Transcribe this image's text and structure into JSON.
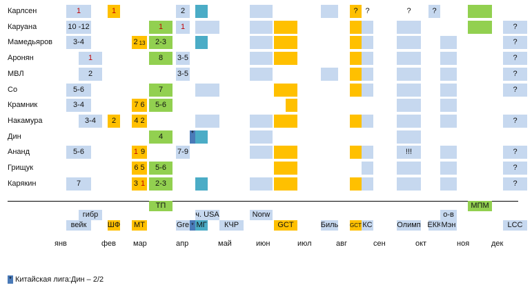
{
  "colors": {
    "blue": "#c6d8ef",
    "orange": "#ffc000",
    "green": "#92d050",
    "teal": "#4bacc6",
    "darkblue": "#4a7ab8",
    "red_text": "#c00000"
  },
  "chart_data": {
    "type": "table",
    "players": [
      "Карлсен",
      "Каруана",
      "Мамедьяров",
      "Аронян",
      "МВЛ",
      "Со",
      "Крамник",
      "Накамура",
      "Дин",
      "Ананд",
      "Грищук",
      "Карякин"
    ],
    "months": [
      "янв",
      "фев",
      "мар",
      "апр",
      "май",
      "июн",
      "июл",
      "авг",
      "сен",
      "окт",
      "ноя",
      "дек"
    ],
    "events_row1": [
      "ТП",
      "МПМ"
    ],
    "events_row2": [
      "гибр",
      "ч. USA",
      "Norw",
      "о-в"
    ],
    "events_row3": [
      "вейк",
      "ШФ",
      "МТ",
      "Gre",
      "*",
      "МГ",
      "КЧР",
      "GCT",
      "Биль",
      "GCT",
      "КС",
      "Олимп",
      "ЕКК",
      "Мэн",
      "LCC"
    ],
    "footnote_marker": "*",
    "footnote": "Китайская лига:Дин – 2/2",
    "grid": [
      {
        "player": "Карлсен",
        "cells": [
          {
            "col": "вейк",
            "color": "blue",
            "text": "1",
            "text_color": "red"
          },
          {
            "col": "ШФ",
            "color": "orange",
            "text": "1",
            "text_color": "red"
          },
          {
            "col": "Gre",
            "color": "blue",
            "text": "2"
          },
          {
            "col": "МГ",
            "color": "teal"
          },
          {
            "col": "Norw",
            "color": "blue"
          },
          {
            "col": "Биль",
            "color": "blue"
          },
          {
            "col": "GCT2",
            "color": "orange",
            "text": "?"
          },
          {
            "col": "КС",
            "text": "?"
          },
          {
            "col": "Олимп",
            "text": "?"
          },
          {
            "col": "ЕКК",
            "color": "blue",
            "text": "?"
          },
          {
            "col": "МПМ",
            "color": "green"
          }
        ]
      },
      {
        "player": "Каруана",
        "cells": [
          {
            "col": "вейк",
            "color": "blue",
            "text": "10 -12"
          },
          {
            "col": "ТП",
            "color": "green",
            "text": "1",
            "text_color": "red"
          },
          {
            "col": "Gre",
            "color": "blue",
            "text": "1",
            "text_color": "red"
          },
          {
            "col": "USA",
            "color": "blue"
          },
          {
            "col": "Norw",
            "color": "blue"
          },
          {
            "col": "GCT",
            "color": "orange"
          },
          {
            "col": "GCT2",
            "color": "orange"
          },
          {
            "col": "КС",
            "color": "blue"
          },
          {
            "col": "Олимп",
            "color": "blue"
          },
          {
            "col": "МПМ",
            "color": "green"
          },
          {
            "col": "LCC",
            "color": "blue",
            "text": "?"
          }
        ]
      },
      {
        "player": "Мамедьяров",
        "cells": [
          {
            "col": "вейк",
            "color": "blue",
            "text": "3-4"
          },
          {
            "col": "МТ",
            "color": "orange",
            "text": "2",
            "sub": "13"
          },
          {
            "col": "ТП",
            "color": "green",
            "text": "2-3"
          },
          {
            "col": "МГ",
            "color": "teal"
          },
          {
            "col": "Norw",
            "color": "blue"
          },
          {
            "col": "GCT",
            "color": "orange"
          },
          {
            "col": "GCT2",
            "color": "orange"
          },
          {
            "col": "КС",
            "color": "blue"
          },
          {
            "col": "Олимп",
            "color": "blue"
          },
          {
            "col": "Мэн",
            "color": "blue"
          },
          {
            "col": "LCC",
            "color": "blue",
            "text": "?"
          }
        ]
      },
      {
        "player": "Аронян",
        "cells": [
          {
            "col": "гибр",
            "color": "blue",
            "text": "1",
            "text_color": "red"
          },
          {
            "col": "ТП",
            "color": "green",
            "text": "8"
          },
          {
            "col": "Gre",
            "color": "blue",
            "text": "3-5"
          },
          {
            "col": "Norw",
            "color": "blue"
          },
          {
            "col": "GCT",
            "color": "orange"
          },
          {
            "col": "GCT2",
            "color": "orange"
          },
          {
            "col": "КС",
            "color": "blue"
          },
          {
            "col": "Олимп",
            "color": "blue"
          },
          {
            "col": "Мэн",
            "color": "blue"
          },
          {
            "col": "LCC",
            "color": "blue",
            "text": "?"
          }
        ]
      },
      {
        "player": "МВЛ",
        "cells": [
          {
            "col": "гибр",
            "color": "blue",
            "text": "2"
          },
          {
            "col": "Gre",
            "color": "blue",
            "text": "3-5"
          },
          {
            "col": "Norw",
            "color": "blue"
          },
          {
            "col": "Биль",
            "color": "blue"
          },
          {
            "col": "GCT2",
            "color": "orange"
          },
          {
            "col": "КС",
            "color": "blue"
          },
          {
            "col": "Олимп",
            "color": "blue"
          },
          {
            "col": "Мэн",
            "color": "blue"
          },
          {
            "col": "LCC",
            "color": "blue",
            "text": "?"
          }
        ]
      },
      {
        "player": "Со",
        "cells": [
          {
            "col": "вейк",
            "color": "blue",
            "text": "5-6"
          },
          {
            "col": "ТП",
            "color": "green",
            "text": "7"
          },
          {
            "col": "USA",
            "color": "blue"
          },
          {
            "col": "GCT",
            "color": "orange"
          },
          {
            "col": "GCT2",
            "color": "orange"
          },
          {
            "col": "КС",
            "color": "blue"
          },
          {
            "col": "Олимп",
            "color": "blue"
          },
          {
            "col": "Мэн",
            "color": "blue"
          },
          {
            "col": "LCC",
            "color": "blue",
            "text": "?"
          }
        ]
      },
      {
        "player": "Крамник",
        "cells": [
          {
            "col": "вейк",
            "color": "blue",
            "text": "3-4"
          },
          {
            "col": "МТ",
            "color": "orange",
            "text": "7 6"
          },
          {
            "col": "ТП",
            "color": "green",
            "text": "5-6"
          },
          {
            "col": "GCT_small",
            "color": "orange"
          },
          {
            "col": "Олимп",
            "color": "blue"
          },
          {
            "col": "Мэн",
            "color": "blue"
          }
        ]
      },
      {
        "player": "Накамура",
        "cells": [
          {
            "col": "гибр",
            "color": "blue",
            "text": "3-4"
          },
          {
            "col": "ШФ",
            "color": "orange",
            "text": "2"
          },
          {
            "col": "МТ",
            "color": "orange",
            "text": "4 2"
          },
          {
            "col": "USA",
            "color": "blue"
          },
          {
            "col": "Norw",
            "color": "blue"
          },
          {
            "col": "GCT",
            "color": "orange"
          },
          {
            "col": "GCT2",
            "color": "orange"
          },
          {
            "col": "КС",
            "color": "blue"
          },
          {
            "col": "Олимп",
            "color": "blue"
          },
          {
            "col": "Мэн",
            "color": "blue"
          },
          {
            "col": "LCC",
            "color": "blue",
            "text": "?"
          }
        ]
      },
      {
        "player": "Дин",
        "cells": [
          {
            "col": "ТП",
            "color": "green",
            "text": "4"
          },
          {
            "col": "star",
            "color": "darkblue",
            "text": "*"
          },
          {
            "col": "МГ",
            "color": "teal"
          },
          {
            "col": "Norw",
            "color": "blue"
          },
          {
            "col": "Олимп",
            "color": "blue"
          }
        ]
      },
      {
        "player": "Ананд",
        "cells": [
          {
            "col": "вейк",
            "color": "blue",
            "text": "5-6"
          },
          {
            "col": "МТ",
            "color": "orange",
            "text": "1 9",
            "first_red": true
          },
          {
            "col": "Gre",
            "color": "blue",
            "text": "7-9"
          },
          {
            "col": "Norw",
            "color": "blue"
          },
          {
            "col": "GCT",
            "color": "orange"
          },
          {
            "col": "GCT2",
            "color": "orange"
          },
          {
            "col": "КС",
            "color": "blue"
          },
          {
            "col": "Олимп",
            "color": "blue",
            "text": "!!!"
          },
          {
            "col": "Мэн",
            "color": "blue"
          },
          {
            "col": "LCC",
            "color": "blue",
            "text": "?"
          }
        ]
      },
      {
        "player": "Грищук",
        "cells": [
          {
            "col": "МТ",
            "color": "orange",
            "text": "6 5"
          },
          {
            "col": "ТП",
            "color": "green",
            "text": "5-6"
          },
          {
            "col": "GCT",
            "color": "orange"
          },
          {
            "col": "КС",
            "color": "blue"
          },
          {
            "col": "Олимп",
            "color": "blue"
          },
          {
            "col": "Мэн",
            "color": "blue"
          },
          {
            "col": "LCC",
            "color": "blue",
            "text": "?"
          }
        ]
      },
      {
        "player": "Карякин",
        "cells": [
          {
            "col": "вейк",
            "color": "blue",
            "text": "7"
          },
          {
            "col": "МТ",
            "color": "orange",
            "text": "3 1",
            "second_red": true
          },
          {
            "col": "ТП",
            "color": "green",
            "text": "2-3"
          },
          {
            "col": "МГ",
            "color": "teal"
          },
          {
            "col": "Norw",
            "color": "blue"
          },
          {
            "col": "GCT",
            "color": "orange"
          },
          {
            "col": "GCT2",
            "color": "orange"
          },
          {
            "col": "КС",
            "color": "blue"
          },
          {
            "col": "Олимп",
            "color": "blue"
          },
          {
            "col": "Мэн",
            "color": "blue"
          },
          {
            "col": "LCC",
            "color": "blue",
            "text": "?"
          }
        ]
      }
    ]
  }
}
